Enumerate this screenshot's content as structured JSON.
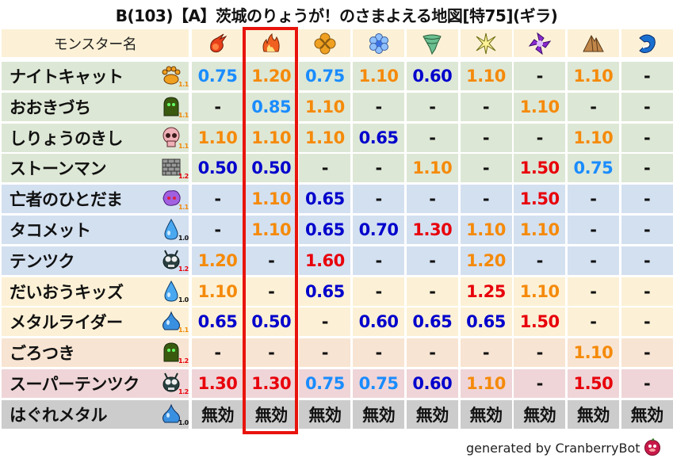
{
  "title": "B(103)【A】茨城のりょうが！のさまよえる地図[特75](ギラ)",
  "header": {
    "name_label": "モンスター名",
    "elements": [
      "fire-ball-icon",
      "flame-icon",
      "earth-clover-icon",
      "ice-flower-icon",
      "wind-tornado-icon",
      "light-star-icon",
      "dark-pinwheel-icon",
      "rock-pyramid-icon",
      "water-wave-icon"
    ],
    "highlighted_column": 1
  },
  "colors": {
    "weak_light": "#1a8cff",
    "weak_strong": "#0000cc",
    "resist_light": "#f58a0a",
    "resist_strong": "#e8000b",
    "highlight_border": "#e8140c"
  },
  "rows": [
    {
      "name": "ナイトキャット",
      "icon": "paw-icon",
      "level": "1.1",
      "bg": "#dde7d5",
      "values": [
        "0.75",
        "1.20",
        "0.75",
        "1.10",
        "0.60",
        "1.10",
        "-",
        "1.10",
        "-"
      ]
    },
    {
      "name": "おおきづち",
      "icon": "green-ghost-icon",
      "level": "1.1",
      "bg": "#dde7d5",
      "values": [
        "-",
        "0.85",
        "1.10",
        "-",
        "-",
        "-",
        "1.10",
        "-",
        "-"
      ]
    },
    {
      "name": "しりょうのきし",
      "icon": "skull-icon",
      "level": "1.1",
      "bg": "#dde7d5",
      "values": [
        "1.10",
        "1.10",
        "1.10",
        "0.65",
        "-",
        "-",
        "-",
        "1.10",
        "-"
      ]
    },
    {
      "name": "ストーンマン",
      "icon": "brick-icon",
      "level": "1.2",
      "bg": "#dde7d5",
      "values": [
        "0.50",
        "0.50",
        "-",
        "-",
        "1.10",
        "-",
        "1.50",
        "0.75",
        "-"
      ]
    },
    {
      "name": "亡者のひとだま",
      "icon": "purple-spirit-icon",
      "level": "1.1",
      "bg": "#d3e0f0",
      "values": [
        "-",
        "1.10",
        "0.65",
        "-",
        "-",
        "-",
        "1.50",
        "-",
        "-"
      ]
    },
    {
      "name": "タコメット",
      "icon": "water-drop-icon",
      "level": "1.0",
      "bg": "#d3e0f0",
      "values": [
        "-",
        "1.10",
        "0.65",
        "0.70",
        "1.30",
        "1.10",
        "1.10",
        "-",
        "-"
      ]
    },
    {
      "name": "テンツク",
      "icon": "bug-icon",
      "level": "1.2",
      "bg": "#d3e0f0",
      "values": [
        "1.20",
        "-",
        "1.60",
        "-",
        "-",
        "1.20",
        "-",
        "-",
        "-"
      ]
    },
    {
      "name": "だいおうキッズ",
      "icon": "water-drop-icon",
      "level": "1.0",
      "bg": "#fcf1d6",
      "values": [
        "1.10",
        "-",
        "0.65",
        "-",
        "-",
        "1.25",
        "1.10",
        "-",
        "-"
      ]
    },
    {
      "name": "メタルライダー",
      "icon": "slime-icon",
      "level": "1.1",
      "bg": "#fcf1d6",
      "values": [
        "0.65",
        "0.50",
        "-",
        "0.60",
        "0.65",
        "0.65",
        "1.50",
        "-",
        "-"
      ]
    },
    {
      "name": "ごろつき",
      "icon": "green-ghost-icon",
      "level": "1.2",
      "bg": "#f8e4d2",
      "values": [
        "-",
        "-",
        "-",
        "-",
        "-",
        "-",
        "-",
        "1.10",
        "-"
      ]
    },
    {
      "name": "スーパーテンツク",
      "icon": "bug-icon",
      "level": "1.2",
      "bg": "#efd5d7",
      "values": [
        "1.30",
        "1.30",
        "0.75",
        "0.75",
        "0.60",
        "1.10",
        "-",
        "1.50",
        "-"
      ]
    },
    {
      "name": "はぐれメタル",
      "icon": "slime-icon",
      "level": "1.0",
      "bg": "#cccccc",
      "values": [
        "無効",
        "無効",
        "無効",
        "無効",
        "無効",
        "無効",
        "無効",
        "無効",
        "無効"
      ]
    }
  ],
  "footer": {
    "text": "generated by CranberryBot",
    "icon": "cranberry-bot-icon"
  }
}
